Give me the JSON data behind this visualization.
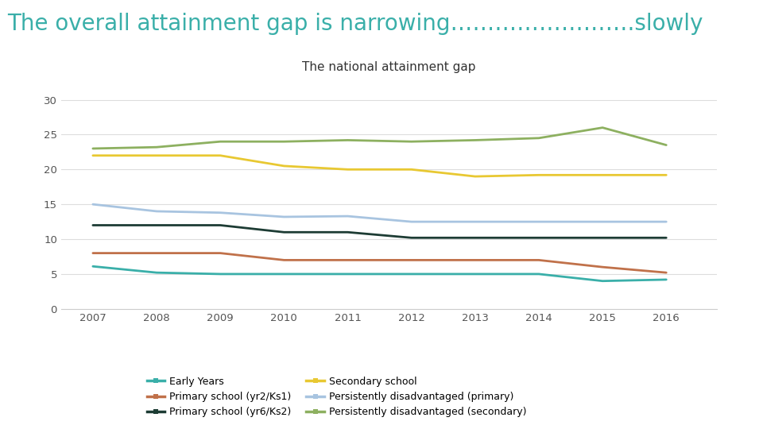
{
  "title": "The overall attainment gap is narrowing…………………….slowly",
  "subtitle": "The national attainment gap",
  "years": [
    2007,
    2008,
    2009,
    2010,
    2011,
    2012,
    2013,
    2014,
    2015,
    2016
  ],
  "series": {
    "Early Years": {
      "values": [
        6.1,
        5.2,
        5.0,
        5.0,
        5.0,
        5.0,
        5.0,
        5.0,
        4.0,
        4.2
      ],
      "color": "#3aafa9",
      "linewidth": 2.0
    },
    "Primary school (yr2/Ks1)": {
      "values": [
        8.0,
        8.0,
        8.0,
        7.0,
        7.0,
        7.0,
        7.0,
        7.0,
        6.0,
        5.2
      ],
      "color": "#c0714a",
      "linewidth": 2.0
    },
    "Primary school (yr6/Ks2)": {
      "values": [
        12.0,
        12.0,
        12.0,
        11.0,
        11.0,
        10.2,
        10.2,
        10.2,
        10.2,
        10.2
      ],
      "color": "#1d3c34",
      "linewidth": 2.0
    },
    "Secondary school": {
      "values": [
        22.0,
        22.0,
        22.0,
        20.5,
        20.0,
        20.0,
        19.0,
        19.2,
        19.2,
        19.2
      ],
      "color": "#e8c832",
      "linewidth": 2.0
    },
    "Persistently disadvantaged (primary)": {
      "values": [
        15.0,
        14.0,
        13.8,
        13.2,
        13.3,
        12.5,
        12.5,
        12.5,
        12.5,
        12.5
      ],
      "color": "#a8c4e0",
      "linewidth": 2.0
    },
    "Persistently disadvantaged (secondary)": {
      "values": [
        23.0,
        23.2,
        24.0,
        24.0,
        24.2,
        24.0,
        24.2,
        24.5,
        26.0,
        23.5
      ],
      "color": "#8db060",
      "linewidth": 2.0
    }
  },
  "ylim": [
    0,
    32
  ],
  "yticks": [
    0,
    5,
    10,
    15,
    20,
    25,
    30
  ],
  "background_color": "#ffffff",
  "title_color": "#3aafa9",
  "title_fontsize": 20,
  "subtitle_fontsize": 11,
  "footer_bg": "#2d8b8b",
  "legend_order": [
    "Early Years",
    "Primary school (yr2/Ks1)",
    "Primary school (yr6/Ks2)",
    "Secondary school",
    "Persistently disadvantaged (primary)",
    "Persistently disadvantaged (secondary)"
  ]
}
